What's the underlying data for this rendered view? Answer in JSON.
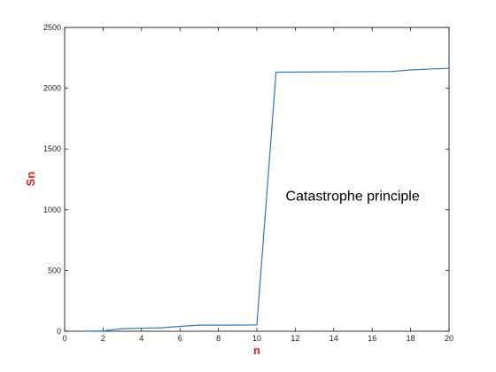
{
  "chart_data": {
    "type": "line",
    "title": "",
    "xlabel": "n",
    "ylabel": "Sn",
    "label_color": "#e0201b",
    "line_color": "#2f7ab8",
    "xlim": [
      0,
      20
    ],
    "ylim": [
      0,
      2500
    ],
    "xticks": [
      0,
      2,
      4,
      6,
      8,
      10,
      12,
      14,
      16,
      18,
      20
    ],
    "yticks": [
      0,
      500,
      1000,
      1500,
      2000,
      2500
    ],
    "grid": false,
    "annotations": [
      {
        "text": "Catastrophe principle",
        "x": 11.5,
        "y": 1060
      }
    ],
    "series": [
      {
        "x": [
          1,
          2,
          3,
          4,
          5,
          6,
          7,
          8,
          9,
          10,
          11,
          12,
          13,
          14,
          15,
          16,
          17,
          18,
          19,
          20
        ],
        "values": [
          1,
          3,
          22,
          25,
          28,
          40,
          50,
          50,
          51,
          52,
          2132,
          2133,
          2134,
          2135,
          2136,
          2137,
          2138,
          2150,
          2158,
          2163
        ]
      }
    ]
  }
}
